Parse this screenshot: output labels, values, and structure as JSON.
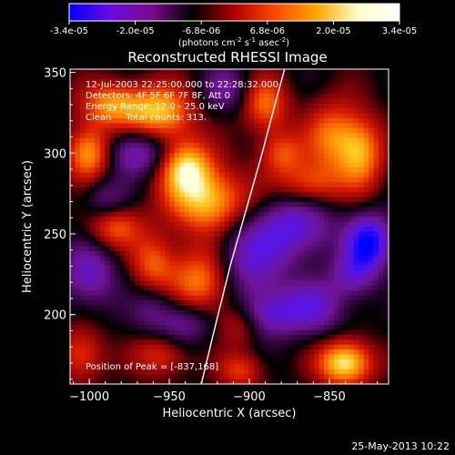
{
  "chart_data": {
    "type": "heatmap",
    "title": "Reconstructed RHESSI Image",
    "xlabel": "Heliocentric X (arcsec)",
    "ylabel": "Heliocentric Y (arcsec)",
    "xlim": [
      -1012,
      -813
    ],
    "ylim": [
      157,
      352
    ],
    "x_ticks": [
      -1000,
      -950,
      -900,
      -850
    ],
    "y_ticks": [
      200,
      250,
      300,
      350
    ],
    "colorbar": {
      "ticks": [
        "-3.4e-05",
        "-2.0e-05",
        "-6.8e-06",
        "6.8e-06",
        "2.0e-05",
        "3.4e-05"
      ],
      "unit_text": "(photons cm",
      "unit_sup1": "-2",
      "unit_mid": " s",
      "unit_sup2": "-1",
      "unit_end": " asec",
      "unit_sup3": "-2",
      "unit_close": ")",
      "colors": [
        "#0000ff",
        "#6a0ae0",
        "#7a0a8a",
        "#000000",
        "#b00000",
        "#ff4a00",
        "#ffa500",
        "#ffffcc",
        "#ffffff"
      ]
    },
    "annotations": [
      "12-Jul-2003 22:25:00.000 to 22:28:32.000",
      "Detectors: 4F 5F 6F 7F 8F, Att 0",
      "Energy Range: 12.0 - 25.0 keV",
      "Clean     Total counts: 313."
    ],
    "peak_label": "Position of Peak = [-837,168]",
    "limb_curve": [
      [
        -930,
        157
      ],
      [
        -922,
        190
      ],
      [
        -912,
        230
      ],
      [
        -902,
        265
      ],
      [
        -892,
        300
      ],
      [
        -884,
        330
      ],
      [
        -878,
        352
      ]
    ],
    "blobs": [
      {
        "x": -985,
        "y": 330,
        "sx": 14,
        "sy": 10,
        "a": 0.7
      },
      {
        "x": -955,
        "y": 325,
        "sx": 14,
        "sy": 12,
        "a": 0.8
      },
      {
        "x": -1000,
        "y": 300,
        "sx": 10,
        "sy": 12,
        "a": 0.8
      },
      {
        "x": -940,
        "y": 292,
        "sx": 12,
        "sy": 12,
        "a": 0.85
      },
      {
        "x": -925,
        "y": 270,
        "sx": 18,
        "sy": 14,
        "a": 0.85
      },
      {
        "x": -930,
        "y": 220,
        "sx": 14,
        "sy": 16,
        "a": 0.7
      },
      {
        "x": -985,
        "y": 255,
        "sx": 12,
        "sy": 10,
        "a": 0.6
      },
      {
        "x": -960,
        "y": 230,
        "sx": 10,
        "sy": 14,
        "a": 0.55
      },
      {
        "x": -890,
        "y": 330,
        "sx": 10,
        "sy": 12,
        "a": 0.6
      },
      {
        "x": -880,
        "y": 300,
        "sx": 10,
        "sy": 10,
        "a": 0.5
      },
      {
        "x": -862,
        "y": 280,
        "sx": 14,
        "sy": 10,
        "a": 0.55
      },
      {
        "x": -848,
        "y": 310,
        "sx": 12,
        "sy": 16,
        "a": 0.6
      },
      {
        "x": -830,
        "y": 300,
        "sx": 10,
        "sy": 16,
        "a": 0.7
      },
      {
        "x": -905,
        "y": 195,
        "sx": 10,
        "sy": 10,
        "a": 0.45
      },
      {
        "x": -840,
        "y": 170,
        "sx": 12,
        "sy": 10,
        "a": 1.0
      },
      {
        "x": -1005,
        "y": 175,
        "sx": 10,
        "sy": 12,
        "a": 0.5
      },
      {
        "x": -955,
        "y": 175,
        "sx": 12,
        "sy": 10,
        "a": 0.45
      },
      {
        "x": -905,
        "y": 165,
        "sx": 10,
        "sy": 8,
        "a": 0.45
      },
      {
        "x": -970,
        "y": 300,
        "sx": 14,
        "sy": 10,
        "a": -0.6
      },
      {
        "x": -1000,
        "y": 225,
        "sx": 12,
        "sy": 14,
        "a": -0.55
      },
      {
        "x": -990,
        "y": 270,
        "sx": 10,
        "sy": 10,
        "a": -0.4
      },
      {
        "x": -900,
        "y": 235,
        "sx": 16,
        "sy": 18,
        "a": -0.6
      },
      {
        "x": -870,
        "y": 255,
        "sx": 16,
        "sy": 14,
        "a": -0.65
      },
      {
        "x": -825,
        "y": 245,
        "sx": 10,
        "sy": 12,
        "a": -0.95
      },
      {
        "x": -890,
        "y": 200,
        "sx": 14,
        "sy": 10,
        "a": -0.6
      },
      {
        "x": -940,
        "y": 195,
        "sx": 12,
        "sy": 10,
        "a": -0.5
      },
      {
        "x": -860,
        "y": 205,
        "sx": 14,
        "sy": 12,
        "a": -0.55
      },
      {
        "x": -835,
        "y": 225,
        "sx": 10,
        "sy": 10,
        "a": -0.5
      },
      {
        "x": -915,
        "y": 340,
        "sx": 10,
        "sy": 10,
        "a": -0.4
      },
      {
        "x": -960,
        "y": 205,
        "sx": 10,
        "sy": 12,
        "a": -0.35
      }
    ]
  },
  "footer": {
    "timestamp": "25-May-2013 10:22"
  }
}
